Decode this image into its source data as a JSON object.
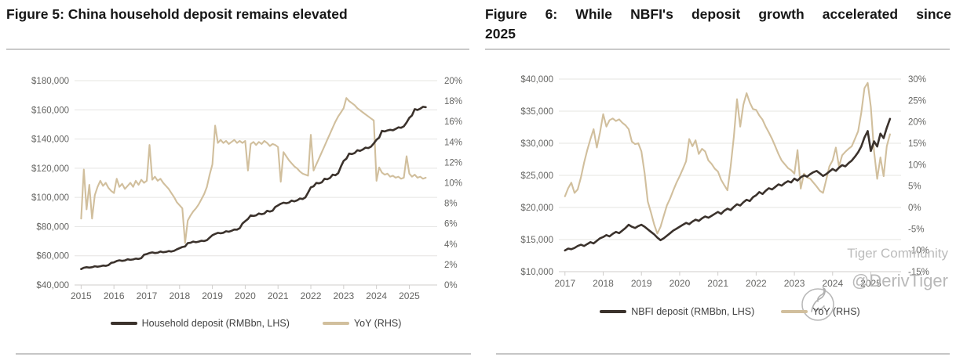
{
  "figures": [
    {
      "title": "Figure 5: China household deposit remains elevated",
      "legend": [
        "Household deposit (RMBbn, LHS)",
        "YoY (RHS)"
      ]
    },
    {
      "title": "Figure 6: While NBFI's deposit growth accelerated since 2025",
      "title_lines": [
        "Figure 6: While NBFI's deposit growth accelerated since",
        "2025"
      ],
      "legend": [
        "NBFI deposit (RMBbn, LHS)",
        "YoY (RHS)"
      ]
    }
  ],
  "watermark": {
    "community": "Tiger Community",
    "handle": "@DerivTiger"
  },
  "colors": {
    "deposit_line": "#3b322c",
    "yoy_line": "#d1bf9d",
    "gridline": "#e5e4e2",
    "axis_line": "#cfcdcb",
    "axis_text": "#666664"
  },
  "chart_data": [
    {
      "type": "line",
      "title": "Figure 5: China household deposit remains elevated",
      "x_unit": "monthly, Jan 2015 - Jul 2025",
      "x_start": 2015.0,
      "x_step_years": 0.0833333,
      "x_min": 2014.8,
      "x_max": 2025.85,
      "x_ticks": [
        2015,
        2016,
        2017,
        2018,
        2019,
        2020,
        2021,
        2022,
        2023,
        2024,
        2025
      ],
      "left_axis": {
        "min": 40000,
        "max": 180000,
        "step": 20000,
        "format": "dollar"
      },
      "right_axis": {
        "min": 0,
        "max": 20,
        "step": 2,
        "format": "percent"
      },
      "grid": "horizontal",
      "legend_position": "bottom",
      "series": [
        {
          "name": "Household deposit (RMBbn, LHS)",
          "axis": "left",
          "color": "#3b322c",
          "width": 2.6,
          "values": [
            50900,
            51800,
            52200,
            51900,
            52200,
            52800,
            52500,
            52800,
            53300,
            53100,
            53600,
            55200,
            55500,
            56400,
            56900,
            56500,
            56800,
            57600,
            57200,
            57500,
            58100,
            57800,
            58400,
            60700,
            61200,
            61900,
            62300,
            61900,
            62100,
            62900,
            62400,
            62700,
            63200,
            62900,
            63400,
            64400,
            65200,
            66000,
            66400,
            68700,
            68900,
            69700,
            69300,
            69700,
            70300,
            70100,
            70700,
            72400,
            74100,
            75000,
            75700,
            75400,
            75800,
            76800,
            76500,
            77100,
            78000,
            77900,
            78900,
            82100,
            83700,
            85200,
            87700,
            87300,
            87700,
            89000,
            88500,
            89000,
            90800,
            90300,
            90900,
            93400,
            94500,
            95600,
            96400,
            96000,
            96500,
            97800,
            97300,
            98000,
            99200,
            98900,
            100000,
            103300,
            106900,
            107600,
            109900,
            109600,
            110300,
            112800,
            112400,
            113300,
            115600,
            115200,
            116600,
            121200,
            125000,
            126500,
            130000,
            129700,
            130400,
            132300,
            131900,
            132800,
            134100,
            133800,
            134800,
            137000,
            139500,
            141000,
            145600,
            145200,
            145900,
            146300,
            146000,
            146900,
            148000,
            147700,
            148700,
            151300,
            154500,
            156200,
            160500,
            159900,
            160800,
            162100,
            161800
          ]
        },
        {
          "name": "YoY (RHS)",
          "axis": "right",
          "color": "#d1bf9d",
          "width": 2.1,
          "values": [
            6.5,
            11.3,
            7.4,
            9.8,
            6.5,
            8.8,
            9.6,
            10.2,
            9.7,
            10.0,
            9.5,
            9.2,
            9.0,
            10.4,
            9.6,
            9.9,
            9.4,
            9.7,
            10.0,
            9.6,
            10.2,
            9.8,
            10.3,
            10.0,
            10.2,
            13.7,
            10.3,
            10.6,
            10.2,
            10.4,
            10.0,
            9.7,
            9.4,
            9.0,
            8.6,
            8.1,
            7.8,
            7.5,
            4.1,
            6.3,
            6.8,
            7.2,
            7.5,
            7.9,
            8.4,
            8.9,
            9.6,
            10.8,
            11.8,
            15.6,
            13.9,
            14.2,
            13.9,
            14.1,
            13.8,
            14.0,
            14.2,
            13.9,
            14.1,
            13.9,
            14.1,
            11.2,
            13.8,
            14.0,
            13.7,
            14.0,
            13.8,
            14.1,
            13.9,
            13.6,
            13.8,
            13.7,
            13.5,
            10.1,
            13.0,
            12.6,
            12.2,
            11.9,
            11.6,
            11.4,
            11.1,
            10.9,
            10.8,
            10.7,
            14.7,
            11.2,
            11.8,
            12.4,
            13.0,
            13.6,
            14.2,
            14.8,
            15.4,
            16.0,
            16.5,
            16.9,
            17.3,
            18.3,
            18.0,
            17.8,
            17.6,
            17.3,
            17.1,
            16.9,
            16.7,
            16.5,
            16.3,
            16.1,
            10.2,
            11.5,
            11.0,
            10.8,
            10.9,
            10.6,
            10.7,
            10.5,
            10.6,
            10.4,
            10.5,
            12.6,
            10.9,
            10.6,
            10.8,
            10.5,
            10.6,
            10.4,
            10.5
          ]
        }
      ]
    },
    {
      "type": "line",
      "title": "Figure 6: While NBFI's deposit growth accelerated since 2025",
      "x_unit": "monthly, Jan 2017 - Jul 2025",
      "x_start": 2017.0,
      "x_step_years": 0.0833333,
      "x_min": 2016.84,
      "x_max": 2025.79,
      "x_ticks": [
        2017,
        2018,
        2019,
        2020,
        2021,
        2022,
        2023,
        2024,
        2025
      ],
      "left_axis": {
        "min": 10000,
        "max": 40000,
        "step": 5000,
        "format": "dollar"
      },
      "right_axis": {
        "min": -15,
        "max": 30,
        "step": 5,
        "format": "percent"
      },
      "grid": "horizontal",
      "legend_position": "bottom",
      "series": [
        {
          "name": "NBFI deposit (RMBbn, LHS)",
          "axis": "left",
          "color": "#3b322c",
          "width": 2.6,
          "values": [
            13300,
            13600,
            13500,
            13700,
            14000,
            14200,
            14000,
            14300,
            14600,
            14400,
            14800,
            15200,
            15400,
            15700,
            15500,
            15900,
            16200,
            16000,
            16400,
            16800,
            17300,
            17000,
            16800,
            17100,
            17300,
            17000,
            16600,
            16200,
            15800,
            15300,
            14900,
            15200,
            15600,
            16000,
            16400,
            16700,
            17000,
            17300,
            17600,
            17400,
            17800,
            18100,
            17900,
            18300,
            18600,
            18400,
            18700,
            19000,
            19300,
            19000,
            19500,
            19800,
            19600,
            20100,
            20500,
            20300,
            20800,
            21200,
            21000,
            21600,
            21900,
            22400,
            22100,
            22600,
            23000,
            22800,
            23200,
            23600,
            23400,
            23800,
            24100,
            23900,
            24500,
            24200,
            24700,
            25000,
            24800,
            25200,
            25500,
            25700,
            25300,
            24900,
            25200,
            25600,
            26000,
            25700,
            26200,
            26600,
            26400,
            26900,
            27300,
            27900,
            28600,
            29500,
            30900,
            31900,
            28800,
            30300,
            29500,
            31500,
            30800,
            32400,
            33800
          ]
        },
        {
          "name": "YoY (RHS)",
          "axis": "right",
          "color": "#d1bf9d",
          "width": 2.1,
          "values": [
            2.6,
            4.5,
            5.8,
            3.4,
            4.2,
            7.0,
            10.5,
            13.4,
            16.0,
            18.3,
            14.0,
            17.5,
            21.8,
            18.9,
            20.4,
            20.8,
            20.2,
            20.6,
            19.8,
            19.2,
            18.3,
            15.4,
            14.8,
            15.0,
            13.1,
            8.0,
            1.4,
            -1.2,
            -4.0,
            -6.1,
            -4.5,
            -2.0,
            0.5,
            2.1,
            4.0,
            5.8,
            7.3,
            9.0,
            10.8,
            16.0,
            14.3,
            15.7,
            12.5,
            13.7,
            13.1,
            11.0,
            10.2,
            9.1,
            8.4,
            6.5,
            5.2,
            4.0,
            9.6,
            16.6,
            25.3,
            18.9,
            24.0,
            26.7,
            24.5,
            23.0,
            22.8,
            21.5,
            20.5,
            18.9,
            17.5,
            16.0,
            14.3,
            12.5,
            11.0,
            10.1,
            9.2,
            8.7,
            7.9,
            13.4,
            4.4,
            7.9,
            7.0,
            6.7,
            5.8,
            4.9,
            3.9,
            3.4,
            6.5,
            9.6,
            11.0,
            14.0,
            9.6,
            12.2,
            13.0,
            13.7,
            14.3,
            16.0,
            17.8,
            22.1,
            27.9,
            29.1,
            23.5,
            13.1,
            6.7,
            11.7,
            7.3,
            14.3,
            17.1
          ]
        }
      ]
    }
  ]
}
